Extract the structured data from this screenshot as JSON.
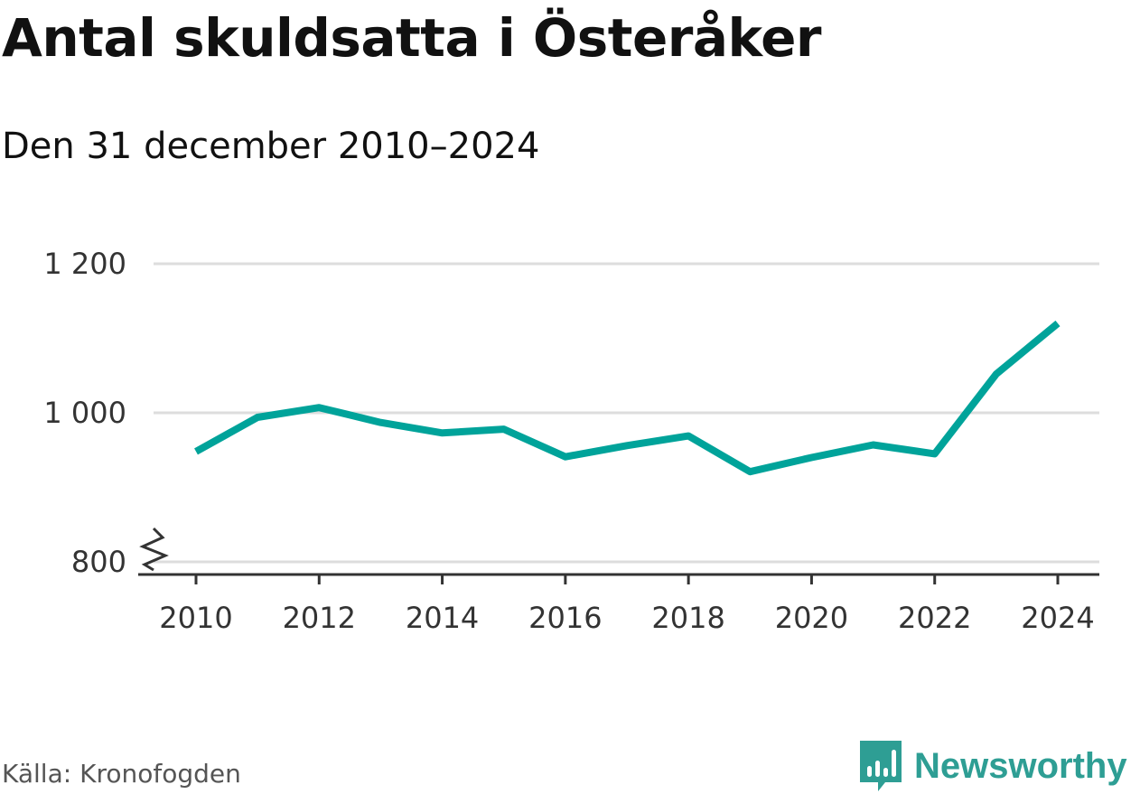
{
  "title": "Antal skuldsatta i Österåker",
  "subtitle": "Den 31 december 2010–2024",
  "source": "Källa: Kronofogden",
  "brand": "Newsworthy",
  "colors": {
    "line": "#00a39a",
    "grid": "#dddddd",
    "axis": "#333333",
    "brand": "#2e9e94"
  },
  "chart_data": {
    "type": "line",
    "title": "Antal skuldsatta i Österåker",
    "subtitle": "Den 31 december 2010–2024",
    "xlabel": "",
    "ylabel": "",
    "x": [
      2010,
      2011,
      2012,
      2013,
      2014,
      2015,
      2016,
      2017,
      2018,
      2019,
      2020,
      2021,
      2022,
      2023,
      2024
    ],
    "series": [
      {
        "name": "Antal skuldsatta",
        "values": [
          948,
          994,
          1007,
          987,
          973,
          978,
          941,
          956,
          969,
          921,
          940,
          957,
          945,
          1052,
          1120
        ]
      }
    ],
    "ylim": [
      800,
      1200
    ],
    "yticks": [
      800,
      1000,
      1200
    ],
    "ytick_labels": [
      "800",
      "1 000",
      "1 200"
    ],
    "xticks": [
      2010,
      2012,
      2014,
      2016,
      2018,
      2020,
      2022,
      2024
    ],
    "xtick_labels": [
      "2010",
      "2012",
      "2014",
      "2016",
      "2018",
      "2020",
      "2022",
      "2024"
    ],
    "axis_break": true,
    "grid": true
  }
}
